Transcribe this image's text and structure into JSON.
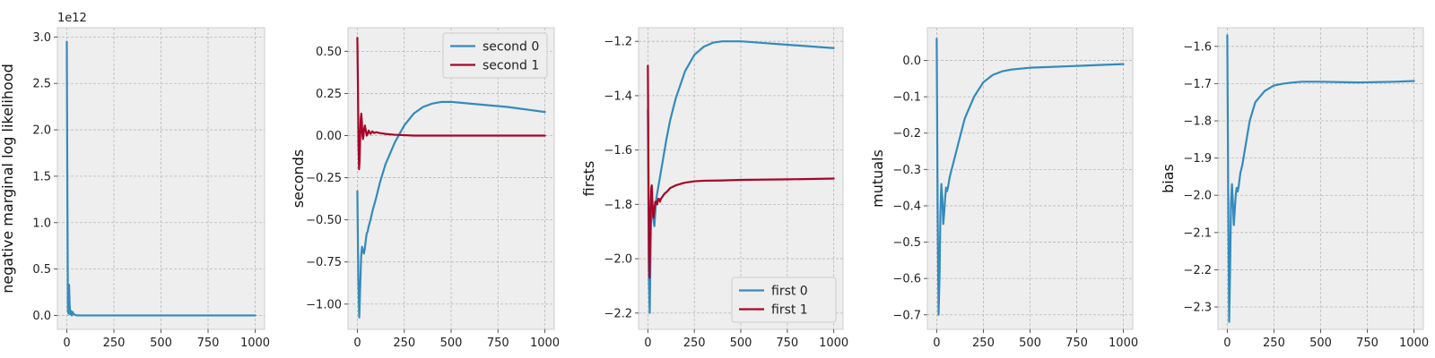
{
  "chart_data": [
    {
      "type": "line",
      "title": "",
      "xlabel": "",
      "ylabel": "negative marginal log likelihood",
      "y_offset_label": "1e12",
      "xlim": [
        -50,
        1050
      ],
      "ylim": [
        -0.15,
        3.1
      ],
      "xticks": [
        0,
        250,
        500,
        750,
        1000
      ],
      "xtick_labels": [
        "0",
        "250",
        "500",
        "750",
        "1000"
      ],
      "yticks": [
        0.0,
        0.5,
        1.0,
        1.5,
        2.0,
        2.5,
        3.0
      ],
      "ytick_labels": [
        "0.0",
        "0.5",
        "1.0",
        "1.5",
        "2.0",
        "2.5",
        "3.0"
      ],
      "grid": true,
      "legend": null,
      "series": [
        {
          "color": "#348abd",
          "x": [
            0,
            3,
            6,
            9,
            12,
            15,
            18,
            21,
            24,
            27,
            30,
            35,
            40,
            45,
            50,
            60,
            80,
            100,
            200,
            300,
            500,
            750,
            1000
          ],
          "y": [
            2.95,
            1.3,
            0.05,
            0.02,
            0.33,
            0.12,
            0.01,
            0.05,
            0.03,
            0.0,
            0.04,
            0.02,
            0.01,
            0.005,
            0.002,
            0.001,
            0.0,
            0.0,
            0.0,
            0.0,
            0.0,
            0.0,
            0.0
          ]
        }
      ]
    },
    {
      "type": "line",
      "title": "",
      "xlabel": "",
      "ylabel": "seconds",
      "xlim": [
        -50,
        1050
      ],
      "ylim": [
        -1.15,
        0.64
      ],
      "xticks": [
        0,
        250,
        500,
        750,
        1000
      ],
      "xtick_labels": [
        "0",
        "250",
        "500",
        "750",
        "1000"
      ],
      "yticks": [
        -1.0,
        -0.75,
        -0.5,
        -0.25,
        0.0,
        0.25,
        0.5
      ],
      "ytick_labels": [
        "−1.00",
        "−0.75",
        "−0.50",
        "−0.25",
        "0.00",
        "0.25",
        "0.50"
      ],
      "grid": true,
      "legend": "top-right",
      "series": [
        {
          "name": "second 0",
          "color": "#348abd",
          "x": [
            0,
            5,
            10,
            15,
            20,
            25,
            30,
            35,
            40,
            45,
            50,
            55,
            60,
            70,
            80,
            90,
            100,
            120,
            150,
            200,
            250,
            300,
            350,
            400,
            450,
            500,
            600,
            700,
            800,
            900,
            1000
          ],
          "y": [
            -0.33,
            -0.85,
            -1.08,
            -0.9,
            -0.72,
            -0.66,
            -0.68,
            -0.7,
            -0.67,
            -0.62,
            -0.58,
            -0.57,
            -0.54,
            -0.5,
            -0.45,
            -0.41,
            -0.37,
            -0.28,
            -0.17,
            -0.04,
            0.06,
            0.13,
            0.17,
            0.19,
            0.2,
            0.2,
            0.19,
            0.18,
            0.17,
            0.155,
            0.14
          ]
        },
        {
          "name": "second 1",
          "color": "#a60628",
          "x": [
            0,
            3,
            6,
            9,
            12,
            15,
            18,
            21,
            24,
            27,
            30,
            33,
            36,
            40,
            45,
            50,
            55,
            60,
            65,
            70,
            80,
            90,
            100,
            120,
            150,
            200,
            300,
            500,
            750,
            1000
          ],
          "y": [
            0.58,
            0.3,
            -0.05,
            -0.2,
            -0.15,
            0.0,
            0.1,
            0.13,
            0.08,
            0.0,
            -0.02,
            0.0,
            0.04,
            0.06,
            0.03,
            0.0,
            0.01,
            0.03,
            0.02,
            0.01,
            0.025,
            0.015,
            0.02,
            0.015,
            0.01,
            0.005,
            0.0,
            0.0,
            0.0,
            0.0
          ]
        }
      ]
    },
    {
      "type": "line",
      "title": "",
      "xlabel": "",
      "ylabel": "firsts",
      "xlim": [
        -50,
        1050
      ],
      "ylim": [
        -2.26,
        -1.15
      ],
      "xticks": [
        0,
        250,
        500,
        750,
        1000
      ],
      "xtick_labels": [
        "0",
        "250",
        "500",
        "750",
        "1000"
      ],
      "yticks": [
        -2.2,
        -2.0,
        -1.8,
        -1.6,
        -1.4,
        -1.2
      ],
      "ytick_labels": [
        "−2.2",
        "−2.0",
        "−1.8",
        "−1.6",
        "−1.4",
        "−1.2"
      ],
      "grid": true,
      "legend": "bottom-right",
      "series": [
        {
          "name": "first 0",
          "color": "#348abd",
          "x": [
            0,
            5,
            10,
            15,
            20,
            25,
            30,
            35,
            40,
            45,
            50,
            55,
            60,
            70,
            80,
            90,
            100,
            120,
            150,
            200,
            250,
            300,
            350,
            400,
            450,
            500,
            600,
            700,
            800,
            900,
            1000
          ],
          "y": [
            -1.45,
            -2.05,
            -2.2,
            -1.95,
            -1.77,
            -1.8,
            -1.86,
            -1.88,
            -1.83,
            -1.78,
            -1.76,
            -1.74,
            -1.72,
            -1.68,
            -1.64,
            -1.6,
            -1.56,
            -1.49,
            -1.41,
            -1.31,
            -1.25,
            -1.22,
            -1.205,
            -1.2,
            -1.2,
            -1.2,
            -1.205,
            -1.21,
            -1.215,
            -1.22,
            -1.225
          ]
        },
        {
          "name": "first 1",
          "color": "#a60628",
          "x": [
            0,
            3,
            6,
            9,
            12,
            15,
            18,
            21,
            24,
            27,
            30,
            35,
            40,
            45,
            50,
            55,
            60,
            65,
            70,
            80,
            90,
            100,
            120,
            150,
            200,
            250,
            300,
            400,
            500,
            750,
            1000
          ],
          "y": [
            -1.29,
            -1.65,
            -2.0,
            -2.07,
            -1.95,
            -1.82,
            -1.74,
            -1.73,
            -1.78,
            -1.83,
            -1.85,
            -1.82,
            -1.79,
            -1.79,
            -1.8,
            -1.78,
            -1.78,
            -1.79,
            -1.78,
            -1.77,
            -1.76,
            -1.755,
            -1.74,
            -1.73,
            -1.72,
            -1.715,
            -1.713,
            -1.712,
            -1.71,
            -1.708,
            -1.705
          ]
        }
      ]
    },
    {
      "type": "line",
      "title": "",
      "xlabel": "",
      "ylabel": "mutuals",
      "xlim": [
        -50,
        1050
      ],
      "ylim": [
        -0.74,
        0.09
      ],
      "xticks": [
        0,
        250,
        500,
        750,
        1000
      ],
      "xtick_labels": [
        "0",
        "250",
        "500",
        "750",
        "1000"
      ],
      "yticks": [
        -0.7,
        -0.6,
        -0.5,
        -0.4,
        -0.3,
        -0.2,
        -0.1,
        0.0
      ],
      "ytick_labels": [
        "−0.7",
        "−0.6",
        "−0.5",
        "−0.4",
        "−0.3",
        "−0.2",
        "−0.1",
        "0.0"
      ],
      "grid": true,
      "legend": null,
      "series": [
        {
          "color": "#348abd",
          "x": [
            0,
            5,
            10,
            15,
            20,
            25,
            30,
            35,
            40,
            45,
            50,
            55,
            60,
            70,
            80,
            90,
            100,
            120,
            150,
            200,
            250,
            300,
            350,
            400,
            500,
            600,
            700,
            800,
            900,
            1000
          ],
          "y": [
            0.06,
            -0.4,
            -0.7,
            -0.6,
            -0.42,
            -0.34,
            -0.38,
            -0.45,
            -0.42,
            -0.38,
            -0.35,
            -0.36,
            -0.35,
            -0.32,
            -0.3,
            -0.28,
            -0.26,
            -0.22,
            -0.16,
            -0.1,
            -0.06,
            -0.04,
            -0.03,
            -0.025,
            -0.02,
            -0.018,
            -0.016,
            -0.014,
            -0.012,
            -0.01
          ]
        }
      ]
    },
    {
      "type": "line",
      "title": "",
      "xlabel": "",
      "ylabel": "bias",
      "xlim": [
        -50,
        1050
      ],
      "ylim": [
        -2.36,
        -1.55
      ],
      "xticks": [
        0,
        250,
        500,
        750,
        1000
      ],
      "xtick_labels": [
        "0",
        "250",
        "500",
        "750",
        "1000"
      ],
      "yticks": [
        -2.3,
        -2.2,
        -2.1,
        -2.0,
        -1.9,
        -1.8,
        -1.7,
        -1.6
      ],
      "ytick_labels": [
        "−2.3",
        "−2.2",
        "−2.1",
        "−2.0",
        "−1.9",
        "−1.8",
        "−1.7",
        "−1.6"
      ],
      "grid": true,
      "legend": null,
      "series": [
        {
          "color": "#348abd",
          "x": [
            0,
            5,
            10,
            15,
            20,
            25,
            30,
            35,
            40,
            45,
            50,
            55,
            60,
            70,
            80,
            90,
            100,
            120,
            150,
            200,
            250,
            300,
            350,
            400,
            450,
            500,
            600,
            700,
            800,
            900,
            1000
          ],
          "y": [
            -1.57,
            -2.0,
            -2.34,
            -2.2,
            -2.02,
            -1.97,
            -2.02,
            -2.08,
            -2.04,
            -2.0,
            -1.98,
            -1.99,
            -1.98,
            -1.94,
            -1.92,
            -1.89,
            -1.86,
            -1.8,
            -1.75,
            -1.72,
            -1.705,
            -1.7,
            -1.697,
            -1.695,
            -1.695,
            -1.695,
            -1.696,
            -1.697,
            -1.696,
            -1.695,
            -1.693
          ]
        }
      ]
    }
  ]
}
